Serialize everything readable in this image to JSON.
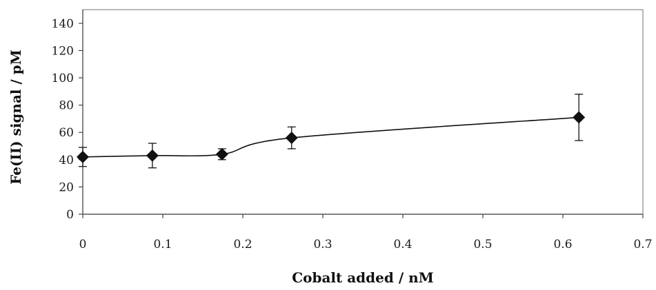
{
  "chart_data": {
    "type": "scatter",
    "title": "",
    "xlabel": "Cobalt added / nM",
    "ylabel": "Fe(II) signal / pM",
    "xlim": [
      0,
      0.7
    ],
    "ylim": [
      0,
      150
    ],
    "x_ticks": [
      "0",
      "0.1",
      "0.2",
      "0.3",
      "0.4",
      "0.5",
      "0.6",
      "0.7"
    ],
    "y_ticks": [
      "0",
      "20",
      "40",
      "60",
      "80",
      "100",
      "120",
      "140"
    ],
    "grid": false,
    "legend": "none",
    "marker": "diamond",
    "colors": {
      "series": "#111111",
      "axis": "#444444",
      "frame": "#888888"
    },
    "series": [
      {
        "x": [
          0,
          0.087,
          0.174,
          0.261,
          0.62
        ],
        "y": [
          42,
          43,
          44,
          56,
          71
        ],
        "error": [
          7,
          9,
          4,
          8,
          17
        ],
        "line": "smooth"
      }
    ]
  }
}
